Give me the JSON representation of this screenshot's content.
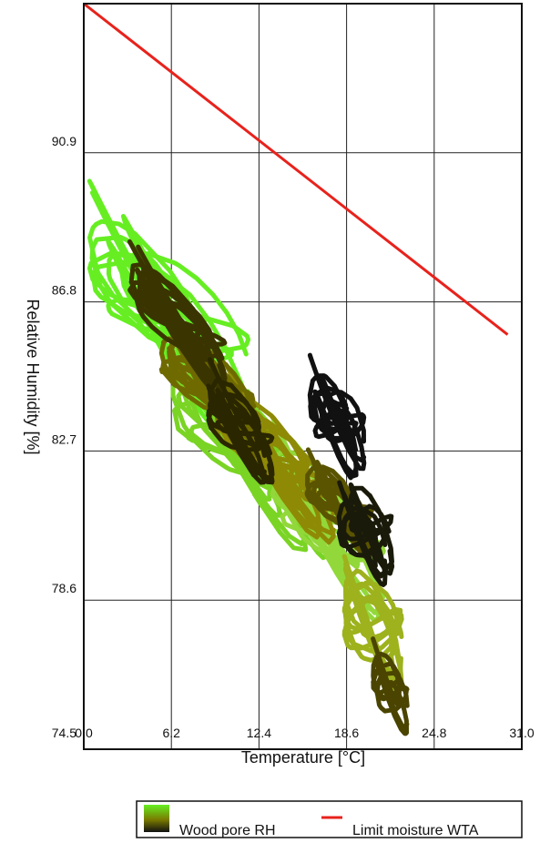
{
  "chart_data": {
    "type": "scatter",
    "title": "",
    "xlabel": "Temperature [°C]",
    "ylabel": "Relative Humidity [%]",
    "xlim": [
      0.0,
      31.0
    ],
    "ylim": [
      74.5,
      95.0
    ],
    "x_ticks": [
      "0.0",
      "6.2",
      "12.4",
      "18.6",
      "24.8",
      "31.0"
    ],
    "y_ticks": [
      "74.5",
      "78.6",
      "82.7",
      "86.8",
      "90.9"
    ],
    "grid": true,
    "legend_position": "bottom-right",
    "legend": {
      "wood_label": "Wood pore RH",
      "limit_label": "Limit moisture WTA"
    },
    "colors": {
      "limit_line": "#e8221c",
      "gradient_light": "#66ee22",
      "gradient_mid": "#7a7a00",
      "gradient_dark": "#111111"
    },
    "series": [
      {
        "name": "Limit moisture WTA",
        "kind": "line",
        "x": [
          0.0,
          30.0
        ],
        "y": [
          95.0,
          85.9
        ]
      },
      {
        "name": "Wood pore RH",
        "kind": "trajectory_clusters",
        "clusters": [
          {
            "color": "#66ee22",
            "cx": 6.0,
            "cy": 86.3,
            "rx": 5.4,
            "ry": 1.9,
            "n": 4
          },
          {
            "color": "#7ad424",
            "cx": 12.0,
            "cy": 82.8,
            "rx": 5.0,
            "ry": 1.7,
            "n": 4
          },
          {
            "color": "#92d83a",
            "cx": 16.5,
            "cy": 80.5,
            "rx": 4.2,
            "ry": 1.6,
            "n": 3
          },
          {
            "color": "#9db21c",
            "cx": 20.5,
            "cy": 77.7,
            "rx": 2.4,
            "ry": 1.7,
            "n": 3
          },
          {
            "color": "#8e8a06",
            "cx": 13.5,
            "cy": 82.3,
            "rx": 4.0,
            "ry": 1.3,
            "n": 4
          },
          {
            "color": "#6f6a00",
            "cx": 9.5,
            "cy": 84.5,
            "rx": 3.6,
            "ry": 1.2,
            "n": 4
          },
          {
            "color": "#5a5400",
            "cx": 18.5,
            "cy": 81.2,
            "rx": 2.4,
            "ry": 1.0,
            "n": 3
          },
          {
            "color": "#4a4400",
            "cx": 22.0,
            "cy": 76.2,
            "rx": 1.3,
            "ry": 1.0,
            "n": 2
          },
          {
            "color": "#3a3500",
            "cx": 7.0,
            "cy": 86.2,
            "rx": 3.6,
            "ry": 1.0,
            "n": 4
          },
          {
            "color": "#2a2600",
            "cx": 11.0,
            "cy": 83.5,
            "rx": 2.4,
            "ry": 1.0,
            "n": 3
          },
          {
            "color": "#1a1a0a",
            "cx": 20.0,
            "cy": 80.6,
            "rx": 1.8,
            "ry": 1.2,
            "n": 3
          },
          {
            "color": "#111111",
            "cx": 18.0,
            "cy": 83.5,
            "rx": 1.8,
            "ry": 1.2,
            "n": 3
          }
        ]
      }
    ]
  }
}
